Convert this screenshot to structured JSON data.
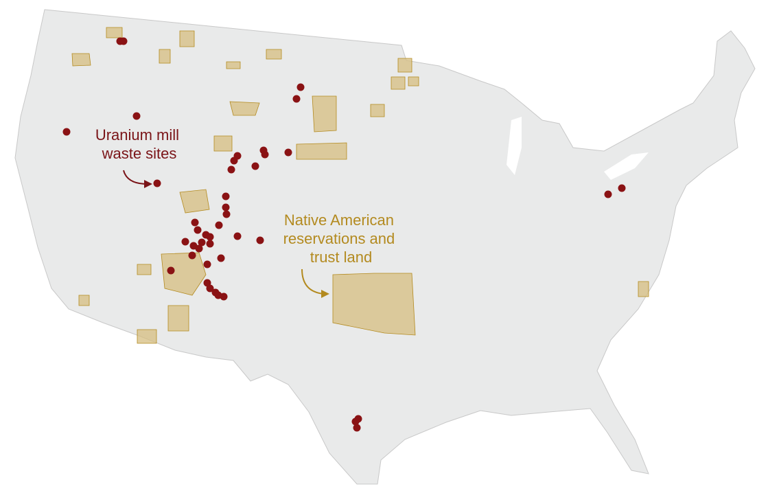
{
  "annotations": [
    {
      "lines": [
        "Uranium mill",
        "waste sites"
      ]
    },
    {
      "lines": [
        "Native American",
        "reservations and",
        "trust land"
      ]
    }
  ]
}
